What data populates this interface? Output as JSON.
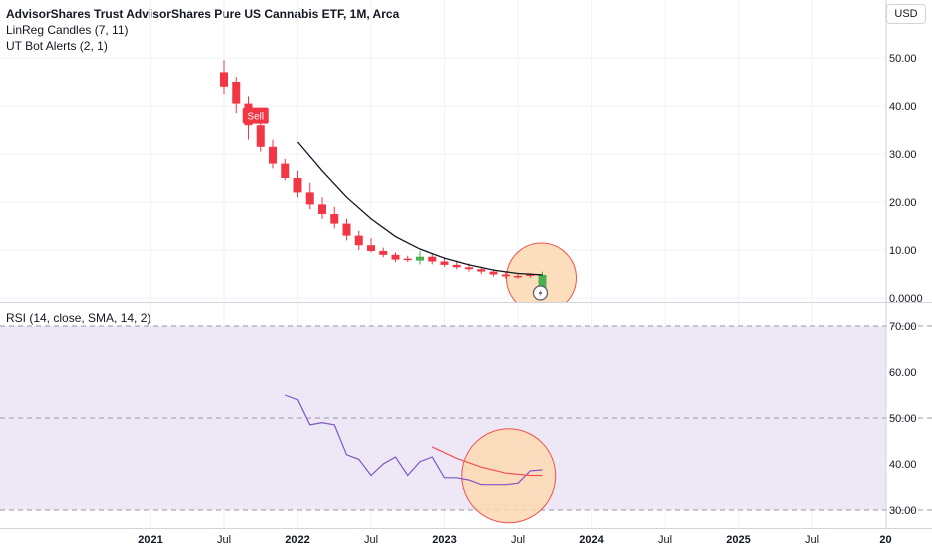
{
  "header": {
    "title": "AdvisorShares Trust AdvisorShares Pure US Cannabis ETF, 1M, Arca",
    "indicator_1": "LinReg Candles (7, 11)",
    "indicator_2": "UT Bot Alerts (2, 1)",
    "currency": "USD"
  },
  "rsi_label": "RSI (14, close, SMA, 14, 2)",
  "sell_label": "Sell",
  "x_axis_labels": [
    "2021",
    "Jul",
    "2022",
    "Jul",
    "2023",
    "Jul",
    "2024",
    "Jul",
    "2025",
    "Jul",
    "20"
  ],
  "chart_data": [
    {
      "type": "candlestick",
      "y_tick_labels": [
        "50.00",
        "40.00",
        "30.00",
        "20.00",
        "10.00",
        "0.0000"
      ],
      "ylim": [
        -0.5,
        52
      ],
      "candles": [
        {
          "t": "2021-07",
          "o": 47.0,
          "h": 49.5,
          "l": 42.5,
          "c": 44.0,
          "color": "red"
        },
        {
          "t": "2021-08",
          "o": 45.0,
          "h": 46.0,
          "l": 38.5,
          "c": 40.5,
          "color": "red"
        },
        {
          "t": "2021-09",
          "o": 40.5,
          "h": 42.0,
          "l": 33.0,
          "c": 36.0,
          "color": "red"
        },
        {
          "t": "2021-10",
          "o": 36.0,
          "h": 38.0,
          "l": 30.5,
          "c": 31.5,
          "color": "red"
        },
        {
          "t": "2021-11",
          "o": 31.5,
          "h": 33.0,
          "l": 27.0,
          "c": 28.0,
          "color": "red"
        },
        {
          "t": "2021-12",
          "o": 28.0,
          "h": 29.0,
          "l": 24.5,
          "c": 25.0,
          "color": "red"
        },
        {
          "t": "2022-01",
          "o": 25.0,
          "h": 26.5,
          "l": 21.0,
          "c": 22.0,
          "color": "red"
        },
        {
          "t": "2022-02",
          "o": 22.0,
          "h": 24.0,
          "l": 18.5,
          "c": 19.5,
          "color": "red"
        },
        {
          "t": "2022-03",
          "o": 19.5,
          "h": 21.0,
          "l": 16.5,
          "c": 17.5,
          "color": "red"
        },
        {
          "t": "2022-04",
          "o": 17.5,
          "h": 19.0,
          "l": 14.5,
          "c": 15.5,
          "color": "red"
        },
        {
          "t": "2022-05",
          "o": 15.5,
          "h": 16.5,
          "l": 12.0,
          "c": 13.0,
          "color": "red"
        },
        {
          "t": "2022-06",
          "o": 13.0,
          "h": 14.0,
          "l": 10.0,
          "c": 11.0,
          "color": "red"
        },
        {
          "t": "2022-07",
          "o": 11.0,
          "h": 12.5,
          "l": 9.5,
          "c": 9.8,
          "color": "red"
        },
        {
          "t": "2022-08",
          "o": 9.8,
          "h": 10.5,
          "l": 8.5,
          "c": 9.0,
          "color": "red"
        },
        {
          "t": "2022-09",
          "o": 9.0,
          "h": 9.5,
          "l": 7.5,
          "c": 8.0,
          "color": "red"
        },
        {
          "t": "2022-10",
          "o": 8.0,
          "h": 8.8,
          "l": 7.5,
          "c": 8.2,
          "color": "red"
        },
        {
          "t": "2022-11",
          "o": 7.8,
          "h": 9.8,
          "l": 7.0,
          "c": 8.6,
          "color": "green"
        },
        {
          "t": "2022-12",
          "o": 8.6,
          "h": 9.2,
          "l": 7.0,
          "c": 7.6,
          "color": "red"
        },
        {
          "t": "2023-01",
          "o": 7.6,
          "h": 8.5,
          "l": 6.5,
          "c": 6.9,
          "color": "red"
        },
        {
          "t": "2023-02",
          "o": 6.9,
          "h": 7.8,
          "l": 6.0,
          "c": 6.4,
          "color": "red"
        },
        {
          "t": "2023-03",
          "o": 6.4,
          "h": 7.2,
          "l": 5.5,
          "c": 6.0,
          "color": "red"
        },
        {
          "t": "2023-04",
          "o": 6.0,
          "h": 6.5,
          "l": 5.0,
          "c": 5.5,
          "color": "red"
        },
        {
          "t": "2023-05",
          "o": 5.5,
          "h": 6.0,
          "l": 4.5,
          "c": 4.9,
          "color": "red"
        },
        {
          "t": "2023-06",
          "o": 4.9,
          "h": 5.4,
          "l": 4.0,
          "c": 4.5,
          "color": "red"
        },
        {
          "t": "2023-07",
          "o": 4.5,
          "h": 5.0,
          "l": 4.0,
          "c": 4.6,
          "color": "red"
        },
        {
          "t": "2023-08",
          "o": 4.6,
          "h": 5.2,
          "l": 4.2,
          "c": 4.9,
          "color": "red"
        },
        {
          "t": "2023-09",
          "o": 1.2,
          "h": 5.5,
          "l": 0.5,
          "c": 4.8,
          "color": "green"
        }
      ],
      "regression_line": [
        {
          "t": "2022-01",
          "y": 32.5
        },
        {
          "t": "2022-03",
          "y": 26.5
        },
        {
          "t": "2022-05",
          "y": 21.0
        },
        {
          "t": "2022-07",
          "y": 16.5
        },
        {
          "t": "2022-09",
          "y": 12.8
        },
        {
          "t": "2022-11",
          "y": 10.2
        },
        {
          "t": "2023-01",
          "y": 8.3
        },
        {
          "t": "2023-03",
          "y": 6.9
        },
        {
          "t": "2023-05",
          "y": 5.8
        },
        {
          "t": "2023-07",
          "y": 5.1
        },
        {
          "t": "2023-09",
          "y": 4.8
        }
      ]
    },
    {
      "type": "line",
      "y_tick_labels": [
        "70.00",
        "60.00",
        "50.00",
        "40.00",
        "30.00"
      ],
      "ylim": [
        28.5,
        72
      ],
      "reference_lines": [
        70,
        50,
        30
      ],
      "band": [
        30,
        70
      ],
      "series": [
        {
          "color": "#7e57c2",
          "points": [
            {
              "t": "2021-12",
              "y": 55.0
            },
            {
              "t": "2022-01",
              "y": 54.0
            },
            {
              "t": "2022-02",
              "y": 48.5
            },
            {
              "t": "2022-03",
              "y": 49.0
            },
            {
              "t": "2022-04",
              "y": 48.5
            },
            {
              "t": "2022-05",
              "y": 42.0
            },
            {
              "t": "2022-06",
              "y": 41.0
            },
            {
              "t": "2022-07",
              "y": 37.5
            },
            {
              "t": "2022-08",
              "y": 40.0
            },
            {
              "t": "2022-09",
              "y": 41.5
            },
            {
              "t": "2022-10",
              "y": 37.5
            },
            {
              "t": "2022-11",
              "y": 40.5
            },
            {
              "t": "2022-12",
              "y": 41.5
            },
            {
              "t": "2023-01",
              "y": 37.0
            },
            {
              "t": "2023-02",
              "y": 37.0
            },
            {
              "t": "2023-03",
              "y": 36.5
            },
            {
              "t": "2023-04",
              "y": 35.5
            },
            {
              "t": "2023-05",
              "y": 35.5
            },
            {
              "t": "2023-06",
              "y": 35.5
            },
            {
              "t": "2023-07",
              "y": 35.8
            },
            {
              "t": "2023-08",
              "y": 38.5
            },
            {
              "t": "2023-09",
              "y": 38.7
            }
          ]
        },
        {
          "color": "#ef5350",
          "points": [
            {
              "t": "2022-12",
              "y": 43.7
            },
            {
              "t": "2023-02",
              "y": 41.2
            },
            {
              "t": "2023-04",
              "y": 39.3
            },
            {
              "t": "2023-06",
              "y": 38.0
            },
            {
              "t": "2023-08",
              "y": 37.5
            },
            {
              "t": "2023-09",
              "y": 37.5
            }
          ]
        }
      ]
    }
  ],
  "colors": {
    "up": "#4caf50",
    "down": "#f23645",
    "rsi_band": "#ede7f6",
    "highlight_fill": "#fbd8b0",
    "highlight_stroke": "#ef5350"
  }
}
